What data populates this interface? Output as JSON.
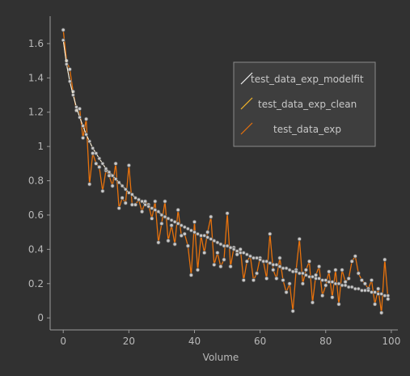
{
  "chart_data": {
    "type": "line",
    "title": "",
    "xlabel": "Volume",
    "ylabel": "",
    "xlim": [
      -4,
      102
    ],
    "ylim": [
      -0.07,
      1.76
    ],
    "x_ticks": [
      0,
      20,
      40,
      60,
      80,
      100
    ],
    "y_ticks": [
      0,
      0.2,
      0.4,
      0.6,
      0.8,
      1,
      1.2,
      1.4,
      1.6
    ],
    "x_tick_labels": [
      "0",
      "20",
      "40",
      "60",
      "80",
      "100"
    ],
    "y_tick_labels": [
      "0",
      "0.2",
      "0.4",
      "0.6",
      "0.8",
      "1",
      "1.2",
      "1.4",
      "1.6"
    ],
    "grid": false,
    "legend_position": "top-right",
    "colors": {
      "background": "#313131",
      "axis": "#9a9a9a",
      "text": "#b9b9b9",
      "modelfit": "#f2f2f2",
      "clean": "#f5b62a",
      "data": "#e8720c",
      "marker": "#c8c8c8"
    },
    "series": [
      {
        "name": "test_data_exp_modelfit",
        "color": "#f2f2f2",
        "x": [
          0,
          1,
          2,
          3,
          4,
          5,
          6,
          7,
          8,
          9,
          10,
          11,
          12,
          13,
          14,
          15,
          16,
          17,
          18,
          19,
          20,
          21,
          22,
          23,
          24,
          25,
          26,
          27,
          28,
          29,
          30,
          31,
          32,
          33,
          34,
          35,
          36,
          37,
          38,
          39,
          40,
          41,
          42,
          43,
          44,
          45,
          46,
          47,
          48,
          49,
          50,
          51,
          52,
          53,
          54,
          55,
          56,
          57,
          58,
          59,
          60,
          61,
          62,
          63,
          64,
          65,
          66,
          67,
          68,
          69,
          70,
          71,
          72,
          73,
          74,
          75,
          76,
          77,
          78,
          79,
          80,
          81,
          82,
          83,
          84,
          85,
          86,
          87,
          88,
          89,
          90,
          91,
          92,
          93,
          94,
          95,
          96,
          97,
          98,
          99
        ],
        "y": [
          1.62,
          1.48,
          1.38,
          1.3,
          1.23,
          1.17,
          1.12,
          1.07,
          1.03,
          0.99,
          0.96,
          0.93,
          0.9,
          0.87,
          0.85,
          0.83,
          0.81,
          0.79,
          0.77,
          0.75,
          0.73,
          0.72,
          0.7,
          0.69,
          0.68,
          0.66,
          0.65,
          0.64,
          0.63,
          0.62,
          0.6,
          0.59,
          0.58,
          0.57,
          0.56,
          0.55,
          0.54,
          0.53,
          0.52,
          0.51,
          0.5,
          0.49,
          0.48,
          0.48,
          0.47,
          0.46,
          0.45,
          0.44,
          0.43,
          0.42,
          0.42,
          0.41,
          0.4,
          0.39,
          0.38,
          0.38,
          0.37,
          0.36,
          0.35,
          0.35,
          0.34,
          0.33,
          0.33,
          0.32,
          0.31,
          0.31,
          0.3,
          0.29,
          0.29,
          0.28,
          0.27,
          0.27,
          0.26,
          0.26,
          0.25,
          0.24,
          0.24,
          0.23,
          0.23,
          0.22,
          0.22,
          0.21,
          0.21,
          0.2,
          0.2,
          0.19,
          0.19,
          0.18,
          0.18,
          0.17,
          0.17,
          0.16,
          0.16,
          0.16,
          0.15,
          0.15,
          0.14,
          0.14,
          0.13,
          0.13
        ]
      },
      {
        "name": "test_data_exp_clean",
        "color": "#f5b62a",
        "x": [
          0,
          1,
          2,
          3,
          4,
          5,
          6,
          7,
          8,
          9,
          10,
          11,
          12,
          13,
          14,
          15,
          16,
          17,
          18,
          19,
          20,
          21,
          22,
          23,
          24,
          25,
          26,
          27,
          28,
          29,
          30,
          31,
          32,
          33,
          34,
          35,
          36,
          37,
          38,
          39,
          40,
          41,
          42,
          43,
          44,
          45,
          46,
          47,
          48,
          49,
          50,
          51,
          52,
          53,
          54,
          55,
          56,
          57,
          58,
          59,
          60,
          61,
          62,
          63,
          64,
          65,
          66,
          67,
          68,
          69,
          70,
          71,
          72,
          73,
          74,
          75,
          76,
          77,
          78,
          79,
          80,
          81,
          82,
          83,
          84,
          85,
          86,
          87,
          88,
          89,
          90,
          91,
          92,
          93,
          94,
          95,
          96,
          97,
          98,
          99
        ],
        "y": [
          1.62,
          1.48,
          1.38,
          1.3,
          1.23,
          1.17,
          1.12,
          1.07,
          1.03,
          0.99,
          0.96,
          0.93,
          0.9,
          0.87,
          0.85,
          0.83,
          0.81,
          0.79,
          0.77,
          0.75,
          0.73,
          0.72,
          0.7,
          0.69,
          0.68,
          0.66,
          0.65,
          0.64,
          0.63,
          0.62,
          0.6,
          0.59,
          0.58,
          0.57,
          0.56,
          0.55,
          0.54,
          0.53,
          0.52,
          0.51,
          0.5,
          0.49,
          0.48,
          0.48,
          0.47,
          0.46,
          0.45,
          0.44,
          0.43,
          0.42,
          0.42,
          0.41,
          0.4,
          0.39,
          0.38,
          0.38,
          0.37,
          0.36,
          0.35,
          0.35,
          0.34,
          0.33,
          0.33,
          0.32,
          0.31,
          0.31,
          0.3,
          0.29,
          0.29,
          0.28,
          0.27,
          0.27,
          0.26,
          0.26,
          0.25,
          0.24,
          0.24,
          0.23,
          0.23,
          0.22,
          0.22,
          0.21,
          0.21,
          0.2,
          0.2,
          0.19,
          0.19,
          0.18,
          0.18,
          0.17,
          0.17,
          0.16,
          0.16,
          0.16,
          0.15,
          0.15,
          0.14,
          0.14,
          0.13,
          0.13
        ]
      },
      {
        "name": "test_data_exp",
        "color": "#e8720c",
        "x": [
          0,
          1,
          2,
          3,
          4,
          5,
          6,
          7,
          8,
          9,
          10,
          11,
          12,
          13,
          14,
          15,
          16,
          17,
          18,
          19,
          20,
          21,
          22,
          23,
          24,
          25,
          26,
          27,
          28,
          29,
          30,
          31,
          32,
          33,
          34,
          35,
          36,
          37,
          38,
          39,
          40,
          41,
          42,
          43,
          44,
          45,
          46,
          47,
          48,
          49,
          50,
          51,
          52,
          53,
          54,
          55,
          56,
          57,
          58,
          59,
          60,
          61,
          62,
          63,
          64,
          65,
          66,
          67,
          68,
          69,
          70,
          71,
          72,
          73,
          74,
          75,
          76,
          77,
          78,
          79,
          80,
          81,
          82,
          83,
          84,
          85,
          86,
          87,
          88,
          89,
          90,
          91,
          92,
          93,
          94,
          95,
          96,
          97,
          98,
          99
        ],
        "y": [
          1.68,
          1.5,
          1.45,
          1.32,
          1.21,
          1.22,
          1.05,
          1.16,
          0.78,
          0.96,
          0.9,
          0.88,
          0.74,
          0.86,
          0.83,
          0.77,
          0.9,
          0.64,
          0.7,
          0.67,
          0.89,
          0.66,
          0.66,
          0.69,
          0.62,
          0.68,
          0.66,
          0.58,
          0.68,
          0.44,
          0.55,
          0.68,
          0.45,
          0.54,
          0.43,
          0.63,
          0.48,
          0.49,
          0.42,
          0.25,
          0.56,
          0.28,
          0.48,
          0.38,
          0.5,
          0.59,
          0.31,
          0.38,
          0.3,
          0.34,
          0.61,
          0.3,
          0.41,
          0.37,
          0.4,
          0.22,
          0.33,
          0.36,
          0.22,
          0.26,
          0.35,
          0.33,
          0.23,
          0.49,
          0.28,
          0.23,
          0.35,
          0.22,
          0.15,
          0.2,
          0.04,
          0.28,
          0.46,
          0.2,
          0.28,
          0.33,
          0.09,
          0.25,
          0.3,
          0.13,
          0.19,
          0.27,
          0.12,
          0.28,
          0.08,
          0.28,
          0.21,
          0.23,
          0.33,
          0.36,
          0.26,
          0.22,
          0.2,
          0.17,
          0.22,
          0.08,
          0.17,
          0.03,
          0.34,
          0.11
        ]
      }
    ]
  }
}
